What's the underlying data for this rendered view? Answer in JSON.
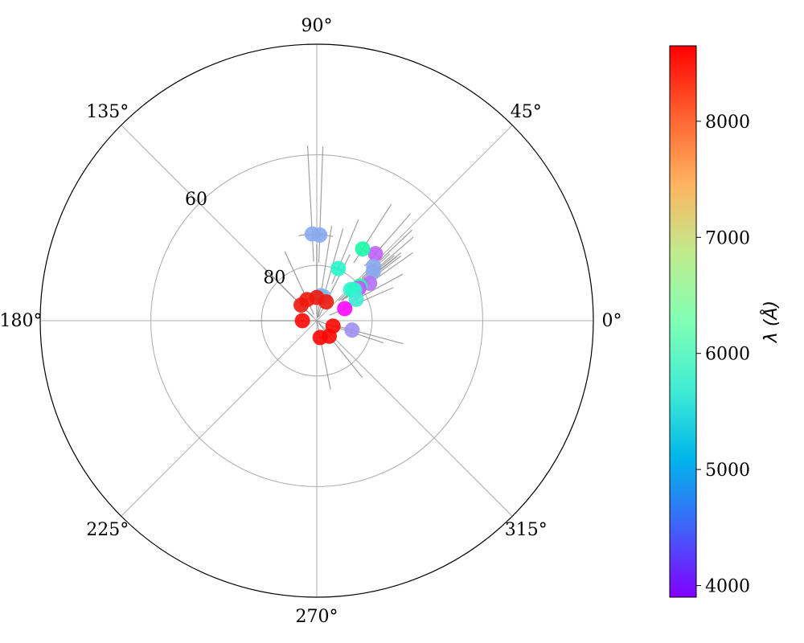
{
  "chart_data": {
    "type": "scatter",
    "projection": "polar",
    "title": "",
    "angle_ticks": [
      {
        "deg": 0,
        "label": "0°"
      },
      {
        "deg": 45,
        "label": "45°"
      },
      {
        "deg": 90,
        "label": "90°"
      },
      {
        "deg": 135,
        "label": "135°"
      },
      {
        "deg": 180,
        "label": "180°"
      },
      {
        "deg": 225,
        "label": "225°"
      },
      {
        "deg": 270,
        "label": "270°"
      },
      {
        "deg": 315,
        "label": "315°"
      }
    ],
    "radial_axis": {
      "quantity": "altitude (deg)",
      "center_value": 90,
      "edge_value": 40,
      "inverted": true,
      "ticks": [
        {
          "value": 80,
          "label": "80"
        },
        {
          "value": 60,
          "label": "60"
        }
      ],
      "label_angle_deg": 135
    },
    "grid": true,
    "colorbar": {
      "label": "λ (Å)",
      "min": 3900,
      "max": 8650,
      "ticks": [
        {
          "value": 4000,
          "label": "4000"
        },
        {
          "value": 5000,
          "label": "5000"
        },
        {
          "value": 6000,
          "label": "6000"
        },
        {
          "value": 7000,
          "label": "7000"
        },
        {
          "value": 8000,
          "label": "8000"
        }
      ],
      "colormap": "rainbow",
      "placement": "right"
    },
    "points": [
      {
        "az": 93,
        "alt": 74.3,
        "wl": 5000,
        "err_az": 9,
        "err_alt": 5
      },
      {
        "az": 88,
        "alt": 74.5,
        "wl": 5000,
        "err_az": 9,
        "err_alt": 5
      },
      {
        "az": 48.8,
        "alt": 73.9,
        "wl": 4500,
        "err_az": 5,
        "err_alt": 3
      },
      {
        "az": 57.4,
        "alt": 74.6,
        "wl": 6500,
        "err_az": 5,
        "err_alt": 3
      },
      {
        "az": 43.6,
        "alt": 75.8,
        "wl": 5000,
        "err_az": 5,
        "err_alt": 3
      },
      {
        "az": 40.9,
        "alt": 76.5,
        "wl": 5000,
        "err_az": 5,
        "err_alt": 3
      },
      {
        "az": 35.3,
        "alt": 78.3,
        "wl": 4600,
        "err_az": 5,
        "err_alt": 3
      },
      {
        "az": 38.9,
        "alt": 80.0,
        "wl": 6600,
        "err_az": 5,
        "err_alt": 3
      },
      {
        "az": 37.6,
        "alt": 80.4,
        "wl": 4400,
        "err_az": 5,
        "err_alt": 3
      },
      {
        "az": 38.7,
        "alt": 81.1,
        "wl": 5000,
        "err_az": 5,
        "err_alt": 3
      },
      {
        "az": 42.5,
        "alt": 81.7,
        "wl": 5800,
        "err_az": 5,
        "err_alt": 3
      },
      {
        "az": 40.0,
        "alt": 81.3,
        "wl": 5900,
        "err_az": 5,
        "err_alt": 3
      },
      {
        "az": 28.4,
        "alt": 81.9,
        "wl": 5700,
        "err_az": 5,
        "err_alt": 3
      },
      {
        "az": 67.6,
        "alt": 79.8,
        "wl": 5900,
        "err_az": 5,
        "err_alt": 3
      },
      {
        "az": 23.4,
        "alt": 84.5,
        "wl": 3950,
        "err_az": 5,
        "err_alt": 3
      },
      {
        "az": 81.1,
        "alt": 85.4,
        "wl": 5100,
        "err_az": 8,
        "err_alt": 4
      },
      {
        "az": 74.1,
        "alt": 85.5,
        "wl": 5100,
        "err_az": 8,
        "err_alt": 4
      },
      {
        "az": 114.8,
        "alt": 85.8,
        "wl": 8500,
        "err_az": 8,
        "err_alt": 3
      },
      {
        "az": 63.4,
        "alt": 86.2,
        "wl": 8500,
        "err_az": 8,
        "err_alt": 3
      },
      {
        "az": 90,
        "alt": 85.8,
        "wl": 8500,
        "err_az": 8,
        "err_alt": 3
      },
      {
        "az": 135,
        "alt": 86.0,
        "wl": 8500,
        "err_az": 8,
        "err_alt": 3
      },
      {
        "az": 180,
        "alt": 87.4,
        "wl": 8600,
        "err_az": 8,
        "err_alt": 3
      },
      {
        "az": 341.6,
        "alt": 86.9,
        "wl": 8600,
        "err_az": 8,
        "err_alt": 3
      },
      {
        "az": 281.3,
        "alt": 86.9,
        "wl": 8600,
        "err_az": 8,
        "err_alt": 3
      },
      {
        "az": 308.7,
        "alt": 86.4,
        "wl": 8600,
        "err_az": 8,
        "err_alt": 3
      },
      {
        "az": 345.1,
        "alt": 83.4,
        "wl": 4800,
        "err_az": 6,
        "err_alt": 3
      }
    ]
  }
}
